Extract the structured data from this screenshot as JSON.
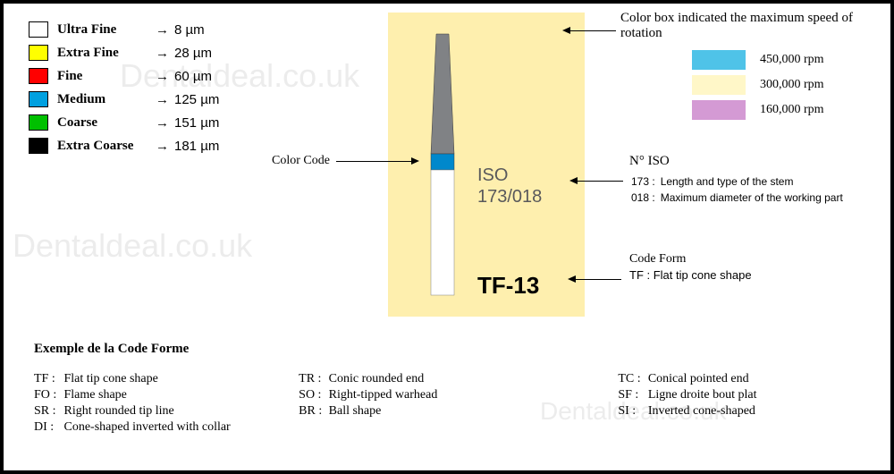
{
  "watermark": "Dentaldeal.co.uk",
  "grain_legend": {
    "rows": [
      {
        "color": "#ffffff",
        "label": "Ultra Fine",
        "value": "8 µm"
      },
      {
        "color": "#ffff00",
        "label": "Extra Fine",
        "value": "28 µm"
      },
      {
        "color": "#ff0000",
        "label": "Fine",
        "value": "60 µm"
      },
      {
        "color": "#00a0e0",
        "label": "Medium",
        "value": "125 µm"
      },
      {
        "color": "#00c000",
        "label": "Coarse",
        "value": "151 µm"
      },
      {
        "color": "#000000",
        "label": "Extra Coarse",
        "value": "181 µm"
      }
    ],
    "arrow_glyph": "→"
  },
  "center": {
    "bg_color": "#feefae",
    "bur": {
      "tip_color": "#808285",
      "band_color": "#0088cc",
      "shank_color": "#ffffff",
      "outline_color": "#3a3a3a"
    },
    "iso_label_line1": "ISO",
    "iso_label_line2": "173/018",
    "code_label": "TF-13",
    "color_code_label": "Color Code"
  },
  "speed": {
    "title": "Color box indicated the maximum speed of rotation",
    "rows": [
      {
        "color": "#4fc3e8",
        "value": "450,000 rpm"
      },
      {
        "color": "#fff7c8",
        "value": "300,000 rpm"
      },
      {
        "color": "#d49ad4",
        "value": "160,000 rpm"
      }
    ]
  },
  "iso_block": {
    "header": "N° ISO",
    "items": [
      {
        "code": "173 :",
        "desc": "Length and type of the stem"
      },
      {
        "code": "018 :",
        "desc": "Maximum diameter of the working part"
      }
    ]
  },
  "codeform_block": {
    "line1": "Code  Form",
    "line2": "TF :  Flat tip cone shape"
  },
  "exemple": {
    "title": "Exemple de la Code Forme",
    "col1": [
      {
        "c": "TF :",
        "d": "Flat tip cone shape"
      },
      {
        "c": "FO :",
        "d": "Flame shape"
      },
      {
        "c": "SR :",
        "d": "Right rounded tip line"
      },
      {
        "c": "DI :",
        "d": "Cone-shaped inverted with collar"
      }
    ],
    "col2": [
      {
        "c": "TR :",
        "d": "Conic rounded end"
      },
      {
        "c": "SO :",
        "d": "Right-tipped warhead"
      },
      {
        "c": "BR :",
        "d": "Ball shape"
      }
    ],
    "col3": [
      {
        "c": "TC :",
        "d": "Conical pointed end"
      },
      {
        "c": "SF :",
        "d": "Ligne droite bout plat"
      },
      {
        "c": "SI :",
        "d": "Inverted cone-shaped"
      }
    ]
  }
}
